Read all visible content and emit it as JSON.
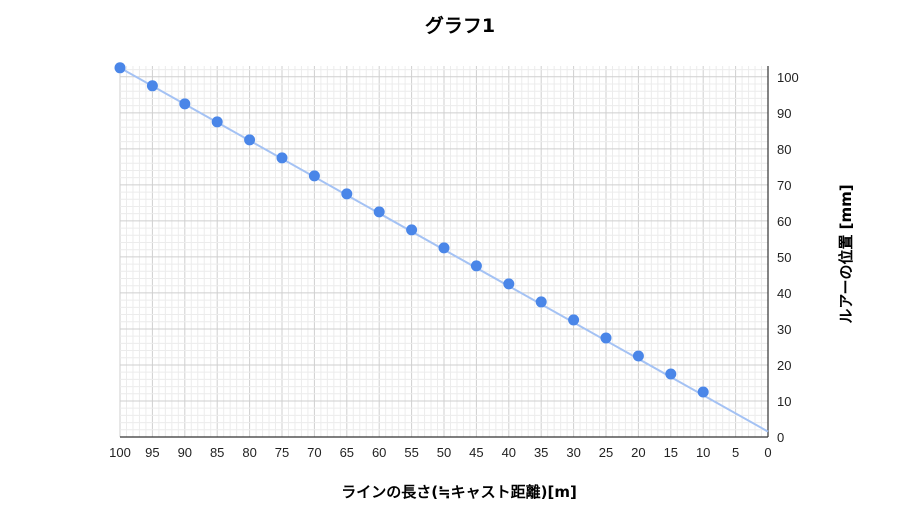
{
  "chart_data": {
    "type": "scatter",
    "title": "グラフ1",
    "xlabel": "ラインの長さ(≒キャスト距離)[m]",
    "ylabel": "ルアーの位置 [mm]",
    "x_reversed": true,
    "xlim": [
      100,
      0
    ],
    "ylim": [
      0,
      103
    ],
    "x_ticks": [
      100,
      95,
      90,
      85,
      80,
      75,
      70,
      65,
      60,
      55,
      50,
      45,
      40,
      35,
      30,
      25,
      20,
      15,
      10,
      5,
      0
    ],
    "y_ticks": [
      0,
      10,
      20,
      30,
      40,
      50,
      60,
      70,
      80,
      90,
      100
    ],
    "y_axis_position": "right",
    "grid": true,
    "legend": "none",
    "series": [
      {
        "marker_color": "#4a86e8",
        "points": [
          {
            "x": 100,
            "y": 102.5
          },
          {
            "x": 95,
            "y": 97.5
          },
          {
            "x": 90,
            "y": 92.5
          },
          {
            "x": 85,
            "y": 87.5
          },
          {
            "x": 80,
            "y": 82.5
          },
          {
            "x": 75,
            "y": 77.5
          },
          {
            "x": 70,
            "y": 72.5
          },
          {
            "x": 65,
            "y": 67.5
          },
          {
            "x": 60,
            "y": 62.5
          },
          {
            "x": 55,
            "y": 57.5
          },
          {
            "x": 50,
            "y": 52.5
          },
          {
            "x": 45,
            "y": 47.5
          },
          {
            "x": 40,
            "y": 42.5
          },
          {
            "x": 35,
            "y": 37.5
          },
          {
            "x": 30,
            "y": 32.5
          },
          {
            "x": 25,
            "y": 27.5
          },
          {
            "x": 20,
            "y": 22.5
          },
          {
            "x": 15,
            "y": 17.5
          },
          {
            "x": 10,
            "y": 12.5
          }
        ]
      }
    ],
    "trendline": {
      "color": "#a4c2f4",
      "from": {
        "x": 100,
        "y": 102.5
      },
      "to": {
        "x": 0,
        "y": 1.5
      }
    }
  }
}
